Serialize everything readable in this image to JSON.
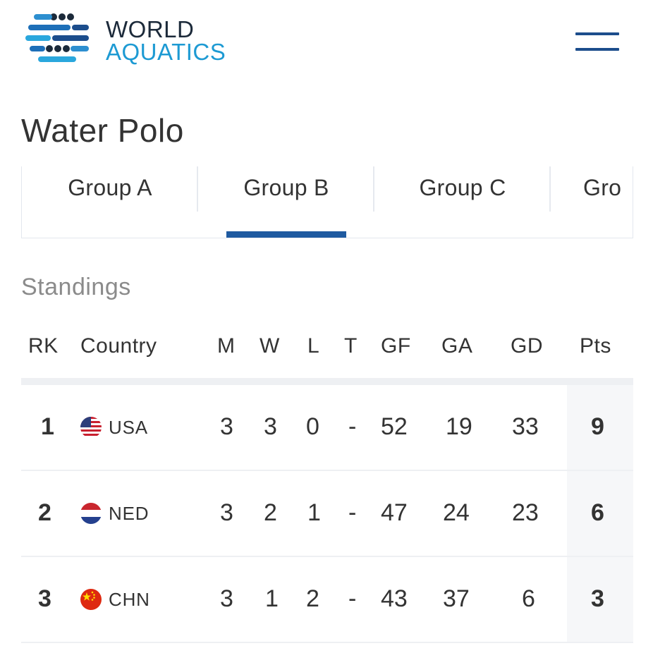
{
  "header": {
    "logo_line1": "WORLD",
    "logo_line2": "AQUATICS",
    "menu_icon": "hamburger-menu-icon",
    "brand_color": "#1d9ad3",
    "nav_color": "#1c4d8c"
  },
  "page": {
    "title": "Water Polo"
  },
  "tabs": [
    {
      "label": "Group A",
      "active": false
    },
    {
      "label": "Group B",
      "active": true
    },
    {
      "label": "Group C",
      "active": false
    },
    {
      "label": "Gro",
      "active": false
    }
  ],
  "standings": {
    "title": "Standings",
    "columns": [
      "RK",
      "Country",
      "M",
      "W",
      "L",
      "T",
      "GF",
      "GA",
      "GD",
      "Pts"
    ],
    "rows": [
      {
        "rk": "1",
        "country": "USA",
        "flag": "usa-flag-icon",
        "m": "3",
        "w": "3",
        "l": "0",
        "t": "-",
        "gf": "52",
        "ga": "19",
        "gd": "33",
        "pts": "9"
      },
      {
        "rk": "2",
        "country": "NED",
        "flag": "netherlands-flag-icon",
        "m": "3",
        "w": "2",
        "l": "1",
        "t": "-",
        "gf": "47",
        "ga": "24",
        "gd": "23",
        "pts": "6"
      },
      {
        "rk": "3",
        "country": "CHN",
        "flag": "china-flag-icon",
        "m": "3",
        "w": "1",
        "l": "2",
        "t": "-",
        "gf": "43",
        "ga": "37",
        "gd": "6",
        "pts": "3"
      }
    ]
  }
}
